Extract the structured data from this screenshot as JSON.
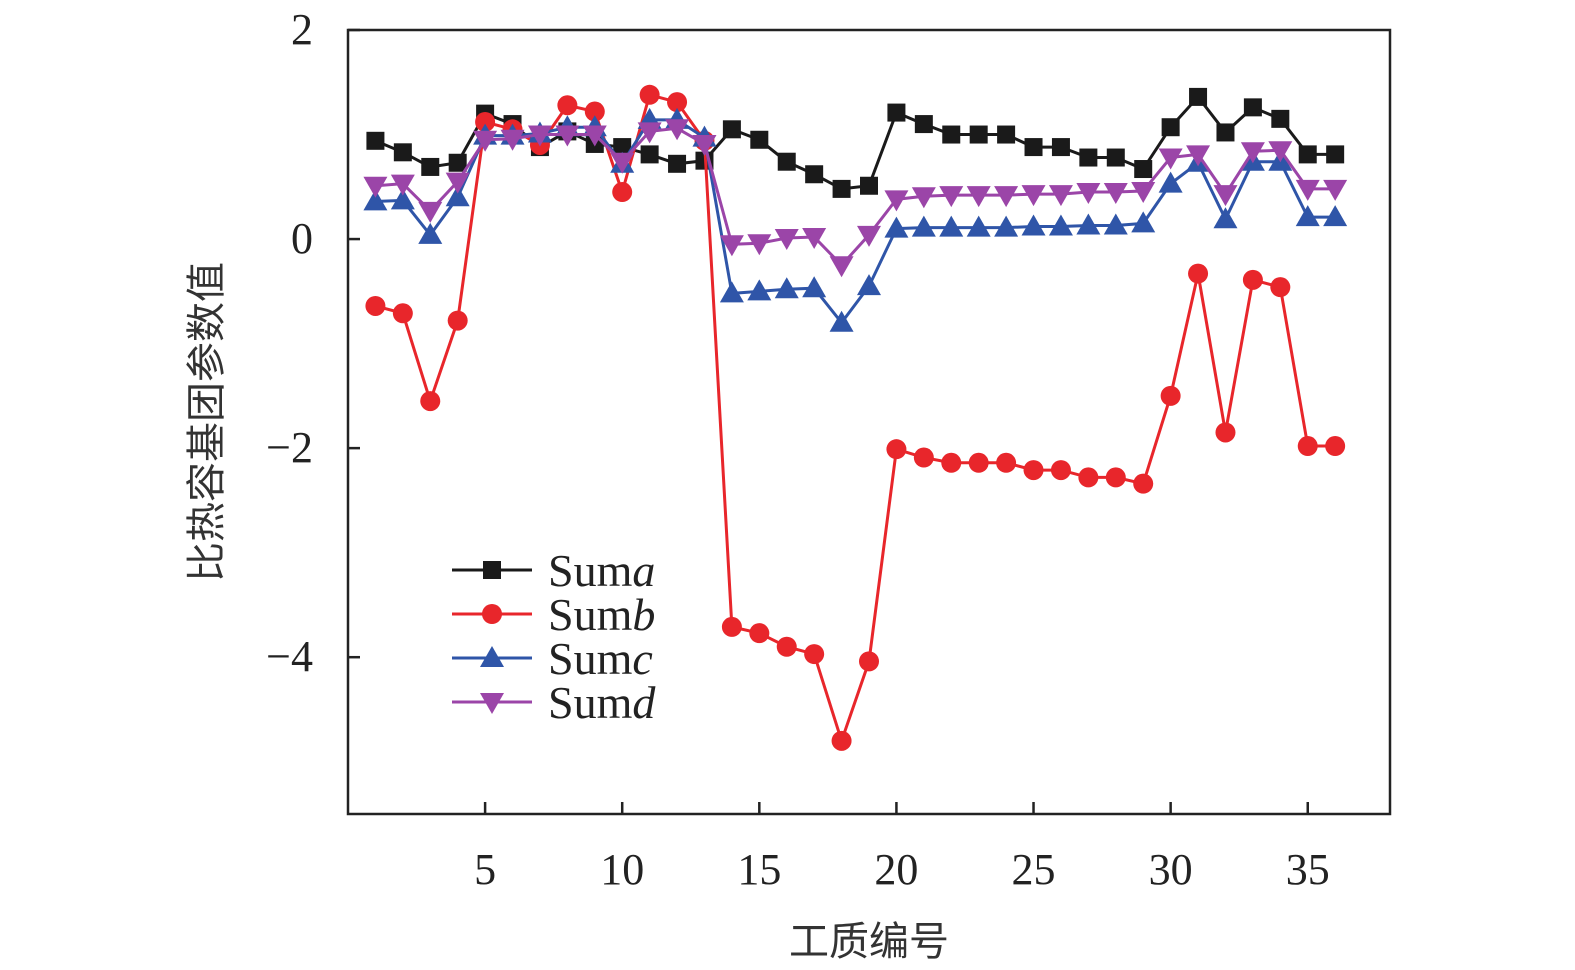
{
  "chart_data": {
    "type": "line",
    "title": "",
    "xlabel": "工质编号",
    "ylabel": "比热容基团参数值",
    "xlim": [
      0,
      38
    ],
    "ylim": [
      -5.5,
      2
    ],
    "xticks": [
      5,
      10,
      15,
      20,
      25,
      30,
      35
    ],
    "yticks": [
      2,
      0,
      -2,
      -4
    ],
    "ytick_labels": [
      "2",
      "0",
      "−2",
      "−4"
    ],
    "grid": false,
    "legend_position": "bottom-left",
    "x": [
      1,
      2,
      3,
      4,
      5,
      6,
      7,
      8,
      9,
      10,
      11,
      12,
      13,
      14,
      15,
      16,
      17,
      18,
      19,
      20,
      21,
      22,
      23,
      24,
      25,
      26,
      27,
      28,
      29,
      30,
      31,
      32,
      33,
      34,
      35,
      36
    ],
    "series": [
      {
        "name": "Sum",
        "name_italic": "a",
        "color": "#1a1a1a",
        "marker": "square",
        "values": [
          0.94,
          0.83,
          0.69,
          0.73,
          1.2,
          1.1,
          0.88,
          1.03,
          0.91,
          0.88,
          0.81,
          0.72,
          0.75,
          1.05,
          0.95,
          0.74,
          0.62,
          0.48,
          0.51,
          1.21,
          1.1,
          1.0,
          1.0,
          1.0,
          0.88,
          0.88,
          0.78,
          0.78,
          0.67,
          1.07,
          1.36,
          1.02,
          1.26,
          1.15,
          0.81,
          0.81
        ]
      },
      {
        "name": "Sum",
        "name_italic": "b",
        "color": "#e8262b",
        "marker": "circle",
        "values": [
          -0.64,
          -0.71,
          -1.55,
          -0.78,
          1.12,
          1.05,
          0.9,
          1.28,
          1.22,
          0.45,
          1.38,
          1.31,
          0.94,
          -3.71,
          -3.77,
          -3.9,
          -3.97,
          -4.8,
          -4.04,
          -2.01,
          -2.09,
          -2.14,
          -2.14,
          -2.14,
          -2.21,
          -2.21,
          -2.28,
          -2.28,
          -2.34,
          -1.5,
          -0.33,
          -1.85,
          -0.39,
          -0.46,
          -1.98,
          -1.98
        ]
      },
      {
        "name": "Sum",
        "name_italic": "c",
        "color": "#2f55a8",
        "marker": "triangle-up",
        "values": [
          0.36,
          0.37,
          0.04,
          0.4,
          0.99,
          0.99,
          1.01,
          1.07,
          1.07,
          0.72,
          1.14,
          1.14,
          0.97,
          -0.52,
          -0.5,
          -0.48,
          -0.47,
          -0.8,
          -0.45,
          0.1,
          0.11,
          0.11,
          0.11,
          0.11,
          0.12,
          0.12,
          0.13,
          0.13,
          0.15,
          0.53,
          0.73,
          0.19,
          0.74,
          0.74,
          0.21,
          0.21
        ]
      },
      {
        "name": "Sum",
        "name_italic": "d",
        "color": "#9b45a8",
        "marker": "triangle-down",
        "values": [
          0.51,
          0.53,
          0.27,
          0.55,
          0.95,
          0.96,
          1.0,
          1.0,
          1.0,
          0.74,
          1.03,
          1.06,
          0.91,
          -0.05,
          -0.04,
          0.01,
          0.02,
          -0.25,
          0.04,
          0.38,
          0.41,
          0.42,
          0.42,
          0.42,
          0.43,
          0.43,
          0.45,
          0.45,
          0.46,
          0.78,
          0.81,
          0.43,
          0.84,
          0.85,
          0.48,
          0.48
        ]
      }
    ]
  }
}
